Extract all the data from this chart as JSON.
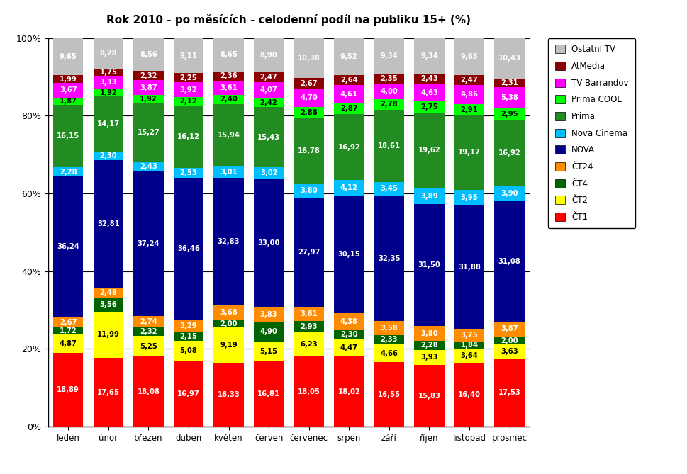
{
  "title": "Rok 2010 - po měsících - celodenní podíl na publiku 15+ (%)",
  "months": [
    "leden",
    "únor",
    "březen",
    "duben",
    "květen",
    "červen",
    "červenec",
    "srpen",
    "září",
    "říjen",
    "listopad",
    "prosinec"
  ],
  "series": [
    {
      "name": "ČT1",
      "color": "#FF0000",
      "values": [
        18.89,
        17.65,
        18.08,
        16.97,
        16.33,
        16.81,
        18.05,
        18.02,
        16.55,
        15.83,
        16.4,
        17.53
      ]
    },
    {
      "name": "ČT2",
      "color": "#FFFF00",
      "values": [
        4.87,
        11.99,
        5.25,
        5.08,
        9.19,
        5.15,
        6.23,
        4.47,
        4.66,
        3.93,
        3.64,
        3.63
      ]
    },
    {
      "name": "ČT4",
      "color": "#006400",
      "values": [
        1.72,
        3.56,
        2.32,
        2.15,
        2.0,
        4.9,
        2.93,
        2.3,
        2.33,
        2.28,
        1.84,
        2.0
      ]
    },
    {
      "name": "ČT24",
      "color": "#FF8C00",
      "values": [
        2.67,
        2.48,
        2.74,
        3.29,
        3.68,
        3.83,
        3.61,
        4.38,
        3.58,
        3.8,
        3.25,
        3.87
      ]
    },
    {
      "name": "NOVA",
      "color": "#00008B",
      "values": [
        36.24,
        32.81,
        37.24,
        36.46,
        32.83,
        33.0,
        27.97,
        30.15,
        32.35,
        31.5,
        31.88,
        31.08
      ]
    },
    {
      "name": "Nova Cinema",
      "color": "#00BFFF",
      "values": [
        2.28,
        2.3,
        2.43,
        2.53,
        3.01,
        3.02,
        3.8,
        4.12,
        3.45,
        3.89,
        3.95,
        3.9
      ]
    },
    {
      "name": "Prima",
      "color": "#228B22",
      "values": [
        16.15,
        14.17,
        15.27,
        16.12,
        15.94,
        15.43,
        16.78,
        16.92,
        18.61,
        19.62,
        19.17,
        16.92
      ]
    },
    {
      "name": "Prima COOL",
      "color": "#00FF00",
      "values": [
        1.87,
        1.92,
        1.92,
        2.12,
        2.4,
        2.42,
        2.88,
        2.87,
        2.78,
        2.75,
        2.91,
        2.95
      ]
    },
    {
      "name": "TV Barrandov",
      "color": "#FF00FF",
      "values": [
        3.67,
        3.33,
        3.87,
        3.92,
        3.61,
        4.07,
        4.7,
        4.61,
        4.0,
        4.63,
        4.86,
        5.38
      ]
    },
    {
      "name": "AtMedia",
      "color": "#8B0000",
      "values": [
        1.99,
        1.75,
        2.32,
        2.25,
        2.36,
        2.47,
        2.67,
        2.64,
        2.35,
        2.43,
        2.47,
        2.31
      ]
    },
    {
      "name": "Ostatní TV",
      "color": "#C0C0C0",
      "values": [
        9.65,
        8.28,
        8.56,
        9.11,
        8.65,
        8.9,
        10.38,
        9.52,
        9.34,
        9.34,
        9.63,
        10.43
      ]
    }
  ],
  "ylim": [
    0,
    100
  ],
  "yticks": [
    0,
    20,
    40,
    60,
    80,
    100
  ],
  "ytick_labels": [
    "0%",
    "20%",
    "40%",
    "60%",
    "80%",
    "100%"
  ],
  "background_color": "#FFFFFF",
  "text_color": "#000000",
  "title_fontsize": 11,
  "label_fontsize": 7.2,
  "bar_width": 0.75
}
